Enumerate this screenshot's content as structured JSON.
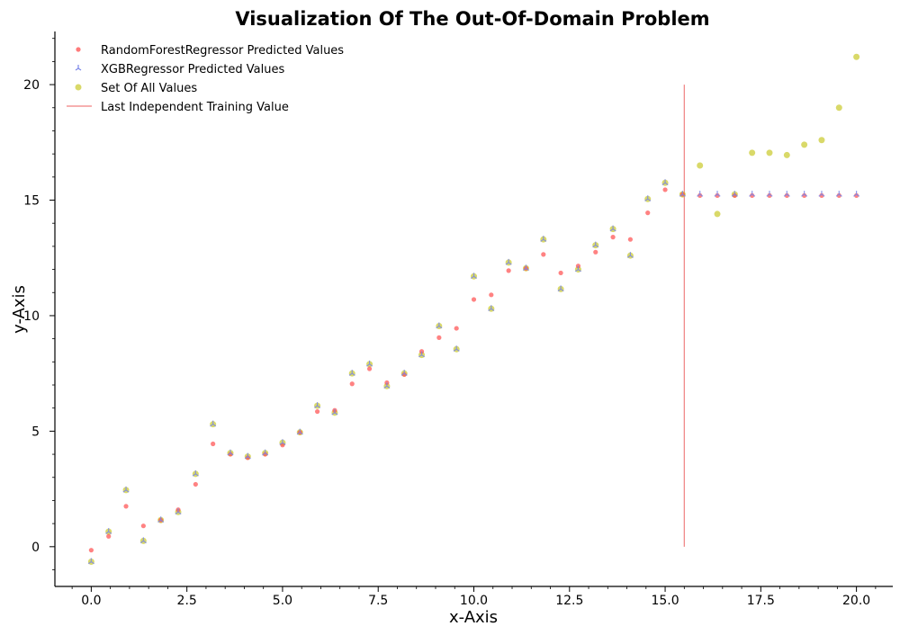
{
  "chart_data": {
    "type": "scatter",
    "title": "Visualization Of The Out-Of-Domain Problem",
    "xlabel": "x-Axis",
    "ylabel": "y-Axis",
    "xlim": [
      -0.95,
      20.95
    ],
    "ylim": [
      -1.72,
      22.3
    ],
    "x_ticks": [
      0.0,
      2.5,
      5.0,
      7.5,
      10.0,
      12.5,
      15.0,
      17.5,
      20.0
    ],
    "x_tick_labels": [
      "0.0",
      "2.5",
      "5.0",
      "7.5",
      "10.0",
      "12.5",
      "15.0",
      "17.5",
      "20.0"
    ],
    "y_ticks": [
      0,
      5,
      10,
      15,
      20
    ],
    "y_tick_labels": [
      "0",
      "5",
      "10",
      "15",
      "20"
    ],
    "grid": false,
    "legend_position": "top-left",
    "legend": [
      "RandomForestRegressor Predicted Values",
      "XGBRegressor Predicted Values",
      "Set Of All Values",
      "Last Independent Training Value"
    ],
    "colors": {
      "random_forest": "#ff4d4d",
      "xgb": "#7a86e8",
      "all_values": "#c9c92a",
      "threshold": "#f08080"
    },
    "x": [
      0.0,
      0.4545,
      0.9091,
      1.3636,
      1.8182,
      2.2727,
      2.7273,
      3.1818,
      3.6364,
      4.0909,
      4.5455,
      5.0,
      5.4545,
      5.9091,
      6.3636,
      6.8182,
      7.2727,
      7.7273,
      8.1818,
      8.6364,
      9.0909,
      9.5455,
      10.0,
      10.4545,
      10.9091,
      11.3636,
      11.8182,
      12.2727,
      12.7273,
      13.1818,
      13.6364,
      14.0909,
      14.5455,
      15.0,
      15.4545,
      15.9091,
      16.3636,
      16.8182,
      17.2727,
      17.7273,
      18.1818,
      18.6364,
      19.0909,
      19.5455,
      20.0
    ],
    "series": [
      {
        "name": "Set Of All Values",
        "marker": "circle",
        "values": [
          -0.65,
          0.65,
          2.45,
          0.25,
          1.15,
          1.5,
          3.15,
          5.3,
          4.05,
          3.9,
          4.05,
          4.5,
          4.95,
          6.1,
          5.8,
          7.5,
          7.9,
          6.95,
          7.5,
          8.3,
          9.55,
          8.55,
          11.7,
          10.3,
          12.3,
          12.05,
          13.3,
          11.15,
          12.0,
          13.05,
          13.75,
          12.6,
          15.05,
          15.75,
          15.25,
          16.5,
          14.4,
          15.25,
          17.05,
          17.05,
          16.95,
          17.4,
          17.6,
          19.0,
          21.2
        ]
      },
      {
        "name": "RandomForestRegressor Predicted Values",
        "marker": "circle-small",
        "values": [
          -0.15,
          0.45,
          1.75,
          0.9,
          1.15,
          1.6,
          2.7,
          4.45,
          4.0,
          3.85,
          4.0,
          4.4,
          4.95,
          5.85,
          5.9,
          7.05,
          7.7,
          7.1,
          7.45,
          8.45,
          9.05,
          9.45,
          10.7,
          10.9,
          11.95,
          12.05,
          12.65,
          11.85,
          12.15,
          12.75,
          13.4,
          13.3,
          14.45,
          15.45,
          15.25,
          15.2,
          15.2,
          15.2,
          15.2,
          15.2,
          15.2,
          15.2,
          15.2,
          15.2,
          15.2
        ]
      },
      {
        "name": "XGBRegressor Predicted Values",
        "marker": "tri",
        "values": [
          -0.65,
          0.65,
          2.45,
          0.25,
          1.15,
          1.5,
          3.15,
          5.3,
          4.05,
          3.9,
          4.05,
          4.5,
          4.95,
          6.1,
          5.8,
          7.5,
          7.9,
          6.95,
          7.5,
          8.3,
          9.55,
          8.55,
          11.7,
          10.3,
          12.3,
          12.05,
          13.3,
          11.15,
          12.0,
          13.05,
          13.75,
          12.6,
          15.05,
          15.75,
          15.25,
          15.25,
          15.25,
          15.25,
          15.25,
          15.25,
          15.25,
          15.25,
          15.25,
          15.25,
          15.25
        ]
      }
    ],
    "threshold": {
      "name": "Last Independent Training Value",
      "x": 15.5,
      "y_range": [
        0,
        20
      ]
    }
  }
}
